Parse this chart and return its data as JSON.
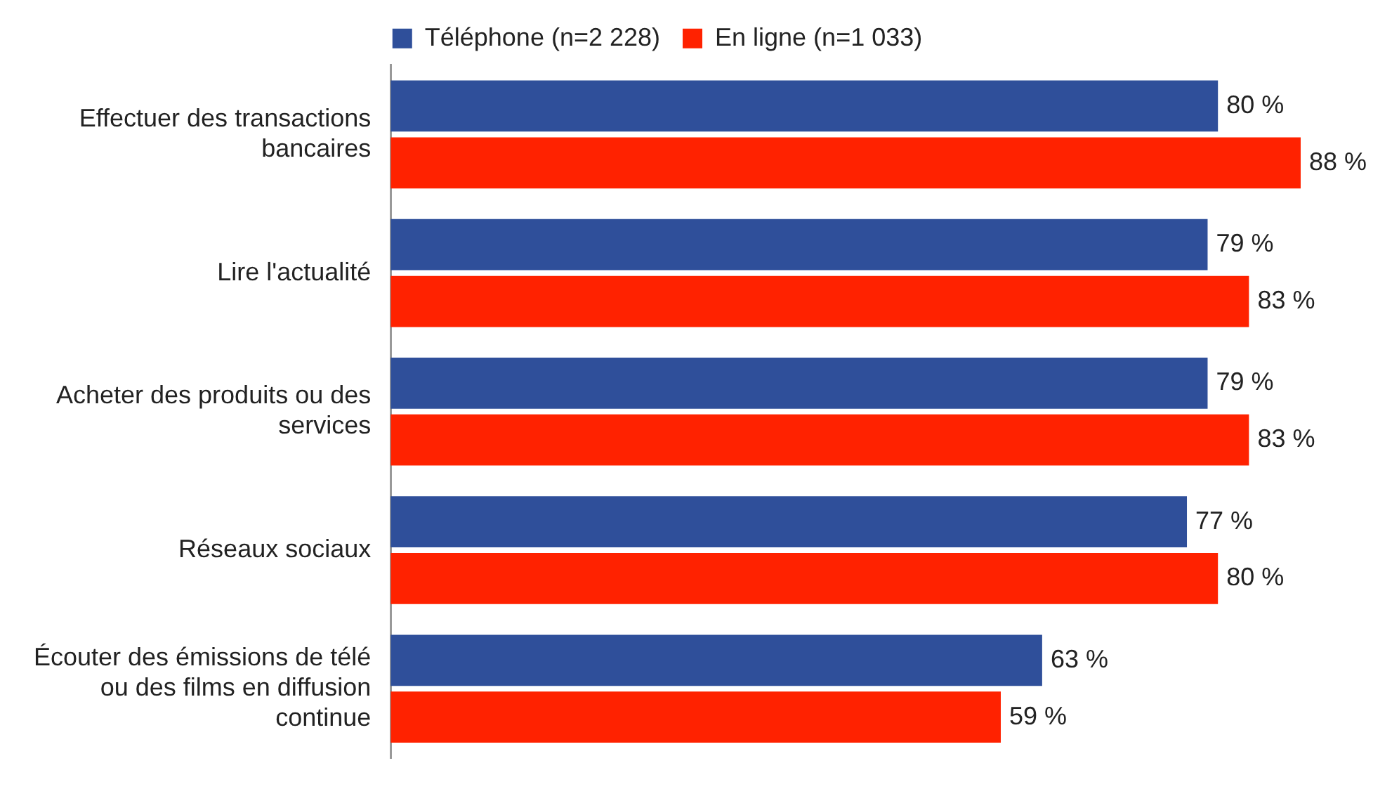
{
  "chart_data": {
    "type": "bar",
    "orientation": "horizontal",
    "legend": "top",
    "categories": [
      "Effectuer des transactions bancaires",
      "Lire l'actualité",
      "Acheter des produits ou des services",
      "Réseaux sociaux",
      "Écouter des émissions de télé ou des films en diffusion continue"
    ],
    "series": [
      {
        "name": "Téléphone (n=2 228)",
        "color": "#2f4f9a",
        "values": [
          80,
          79,
          79,
          77,
          63
        ],
        "value_labels": [
          "80 %",
          "79 %",
          "79 %",
          "77 %",
          "63 %"
        ]
      },
      {
        "name": "En ligne (n=1 033)",
        "color": "#ff2200",
        "values": [
          88,
          83,
          83,
          80,
          59
        ],
        "value_labels": [
          "88 %",
          "83 %",
          "83 %",
          "80 %",
          "59 %"
        ]
      }
    ]
  }
}
